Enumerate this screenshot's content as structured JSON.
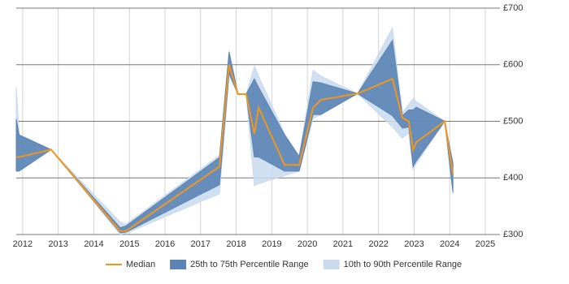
{
  "chart_data": {
    "type": "line",
    "x": [
      2011.82,
      2011.9,
      2012.8,
      2014.74,
      2014.9,
      2017.53,
      2017.8,
      2018.05,
      2018.28,
      2018.51,
      2018.63,
      2019.36,
      2019.77,
      2020.16,
      2020.38,
      2021.41,
      2022.39,
      2022.67,
      2022.85,
      2022.97,
      2023.06,
      2023.86,
      2024.09
    ],
    "series": [
      {
        "name": "Median",
        "color": "#f0961e",
        "values": [
          437,
          437,
          450,
          306,
          306,
          420,
          600,
          548,
          548,
          478,
          524,
          423,
          423,
          524,
          538,
          549,
          575,
          506,
          500,
          449,
          463,
          500,
          406
        ]
      }
    ],
    "bands": [
      {
        "name": "10th to 90th Percentile Range",
        "color": "#c9daed",
        "lower": [
          412,
          412,
          450,
          300,
          302,
          372,
          580,
          548,
          548,
          386,
          390,
          404,
          412,
          505,
          512,
          549,
          490,
          470,
          480,
          415,
          425,
          500,
          372
        ],
        "upper": [
          560,
          476,
          450,
          322,
          318,
          440,
          625,
          548,
          548,
          597,
          580,
          478,
          438,
          590,
          580,
          549,
          665,
          515,
          530,
          540,
          535,
          500,
          428
        ]
      },
      {
        "name": "25th to 75th Percentile Range",
        "color": "#5b84b5",
        "lower": [
          412,
          412,
          450,
          303,
          304,
          388,
          585,
          548,
          548,
          437,
          437,
          412,
          412,
          512,
          512,
          549,
          510,
          488,
          490,
          420,
          430,
          500,
          375
        ],
        "upper": [
          504,
          476,
          450,
          312,
          315,
          436,
          622,
          548,
          548,
          575,
          560,
          476,
          438,
          570,
          568,
          549,
          643,
          510,
          520,
          520,
          525,
          500,
          425
        ]
      }
    ],
    "xlim": [
      2011.82,
      2025.41
    ],
    "xticks": [
      2012,
      2013,
      2014,
      2015,
      2016,
      2017,
      2018,
      2019,
      2020,
      2021,
      2022,
      2023,
      2024,
      2025
    ],
    "ylim": [
      300,
      700
    ],
    "yticks": [
      {
        "value": 300,
        "label": "£300"
      },
      {
        "value": 400,
        "label": "£400"
      },
      {
        "value": 500,
        "label": "£500"
      },
      {
        "value": 600,
        "label": "£600"
      },
      {
        "value": 700,
        "label": "£700"
      }
    ],
    "grid": true
  }
}
